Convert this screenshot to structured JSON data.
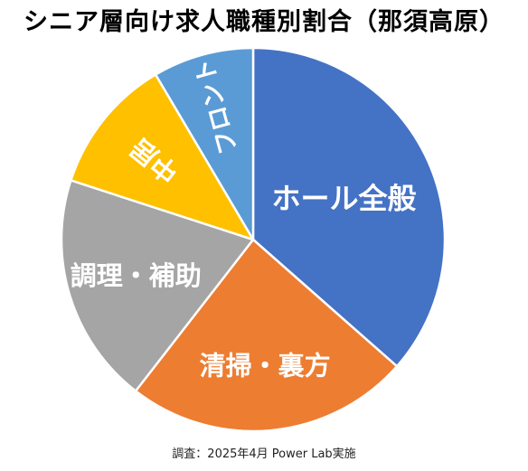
{
  "title": "シニア層向け求人職種別割合（那須高原）",
  "footer": "調査：2025年4月 Power Lab実施",
  "chart_data": {
    "type": "pie",
    "title": "シニア層向け求人職種別割合（那須高原）",
    "start_angle_deg": 0,
    "direction": "clockwise",
    "labels_inside": true,
    "slices": [
      {
        "label": "ホール全般",
        "value": 36.5,
        "color": "#4472C4"
      },
      {
        "label": "清掃・裏方",
        "value": 24.0,
        "color": "#ED7D31"
      },
      {
        "label": "調理・補助",
        "value": 19.5,
        "color": "#A5A5A5"
      },
      {
        "label": "中居",
        "value": 11.5,
        "color": "#FFC000"
      },
      {
        "label": "フロント",
        "value": 8.5,
        "color": "#5B9BD5"
      }
    ]
  }
}
